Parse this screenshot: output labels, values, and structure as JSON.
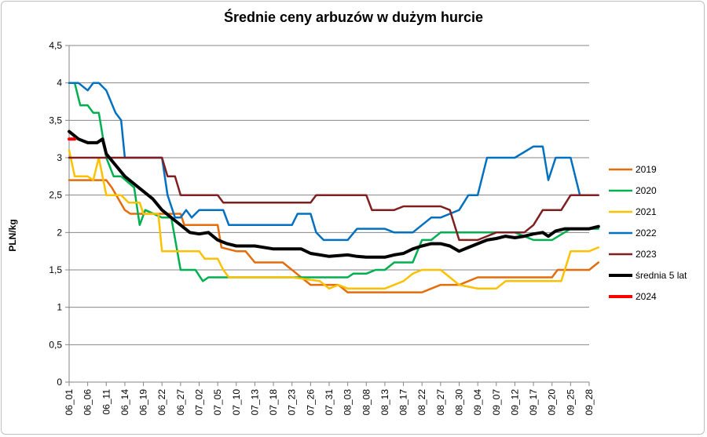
{
  "chart_data": {
    "type": "line",
    "title": "Średnie ceny arbuzów w dużym hurcie",
    "ylabel": "PLN/kg",
    "xlabel": "",
    "ylim": [
      0,
      4.5
    ],
    "yticks": [
      "0",
      "0,5",
      "1",
      "1,5",
      "2",
      "2,5",
      "3",
      "3,5",
      "4",
      "4,5"
    ],
    "grid": true,
    "legend": "right",
    "categories": [
      "06_01",
      "06_06",
      "06_11",
      "06_14",
      "06_19",
      "06_22",
      "06_27",
      "07_02",
      "07_05",
      "07_10",
      "07_13",
      "07_18",
      "07_23",
      "07_26",
      "07_31",
      "08_03",
      "08_08",
      "08_13",
      "08_17",
      "08_22",
      "08_27",
      "08_30",
      "09_04",
      "09_07",
      "09_12",
      "09_17",
      "09_20",
      "09_25",
      "09_28"
    ],
    "series": [
      {
        "name": "2019",
        "color": "#e46c0a",
        "points": [
          [
            0,
            2.7
          ],
          [
            2,
            2.7
          ],
          [
            2.3,
            2.6
          ],
          [
            3,
            2.3
          ],
          [
            3.3,
            2.25
          ],
          [
            4,
            2.25
          ],
          [
            4.3,
            2.25
          ],
          [
            6,
            2.25
          ],
          [
            6.2,
            2.1
          ],
          [
            8,
            2.1
          ],
          [
            8.2,
            1.8
          ],
          [
            9,
            1.75
          ],
          [
            9.5,
            1.75
          ],
          [
            10,
            1.6
          ],
          [
            11.5,
            1.6
          ],
          [
            12,
            1.5
          ],
          [
            12.5,
            1.4
          ],
          [
            13,
            1.3
          ],
          [
            14.5,
            1.3
          ],
          [
            15,
            1.2
          ],
          [
            17,
            1.2
          ],
          [
            19,
            1.2
          ],
          [
            19.5,
            1.25
          ],
          [
            20,
            1.3
          ],
          [
            21,
            1.3
          ],
          [
            21.5,
            1.35
          ],
          [
            22,
            1.4
          ],
          [
            23,
            1.4
          ],
          [
            25,
            1.4
          ],
          [
            26,
            1.4
          ],
          [
            26.3,
            1.5
          ],
          [
            28,
            1.5
          ],
          [
            28.5,
            1.6
          ]
        ]
      },
      {
        "name": "2020",
        "color": "#00b050",
        "points": [
          [
            0,
            4.0
          ],
          [
            0.3,
            4.0
          ],
          [
            0.6,
            3.7
          ],
          [
            1,
            3.7
          ],
          [
            1.3,
            3.6
          ],
          [
            1.6,
            3.6
          ],
          [
            2,
            3.0
          ],
          [
            2.4,
            2.75
          ],
          [
            2.8,
            2.75
          ],
          [
            3.5,
            2.6
          ],
          [
            3.8,
            2.1
          ],
          [
            4.1,
            2.3
          ],
          [
            5,
            2.2
          ],
          [
            5.5,
            2.2
          ],
          [
            6,
            1.5
          ],
          [
            6.8,
            1.5
          ],
          [
            7.2,
            1.35
          ],
          [
            7.5,
            1.4
          ],
          [
            8.3,
            1.4
          ],
          [
            8.5,
            1.4
          ],
          [
            12,
            1.4
          ],
          [
            13,
            1.4
          ],
          [
            15,
            1.4
          ],
          [
            15.3,
            1.45
          ],
          [
            16,
            1.45
          ],
          [
            16.5,
            1.5
          ],
          [
            17,
            1.5
          ],
          [
            17.5,
            1.6
          ],
          [
            18.5,
            1.6
          ],
          [
            19,
            1.9
          ],
          [
            19.5,
            1.9
          ],
          [
            20,
            2.0
          ],
          [
            21,
            2.0
          ],
          [
            24,
            2.0
          ],
          [
            25,
            1.9
          ],
          [
            26,
            1.9
          ],
          [
            27,
            2.05
          ],
          [
            28.5,
            2.05
          ]
        ]
      },
      {
        "name": "2021",
        "color": "#ffc000",
        "points": [
          [
            0,
            3.1
          ],
          [
            0.3,
            2.75
          ],
          [
            1,
            2.75
          ],
          [
            1.3,
            2.7
          ],
          [
            1.6,
            3.0
          ],
          [
            2,
            2.5
          ],
          [
            2.8,
            2.5
          ],
          [
            3.2,
            2.4
          ],
          [
            3.8,
            2.4
          ],
          [
            4,
            2.25
          ],
          [
            4.8,
            2.25
          ],
          [
            5,
            1.75
          ],
          [
            6.5,
            1.75
          ],
          [
            7,
            1.75
          ],
          [
            7.3,
            1.65
          ],
          [
            8,
            1.65
          ],
          [
            8.3,
            1.5
          ],
          [
            8.6,
            1.4
          ],
          [
            12,
            1.4
          ],
          [
            13.5,
            1.35
          ],
          [
            14,
            1.25
          ],
          [
            14.5,
            1.3
          ],
          [
            15,
            1.25
          ],
          [
            17,
            1.25
          ],
          [
            17.5,
            1.3
          ],
          [
            18,
            1.35
          ],
          [
            18.5,
            1.45
          ],
          [
            19,
            1.5
          ],
          [
            20,
            1.5
          ],
          [
            20.5,
            1.4
          ],
          [
            21,
            1.3
          ],
          [
            22,
            1.25
          ],
          [
            23,
            1.25
          ],
          [
            23.5,
            1.35
          ],
          [
            25,
            1.35
          ],
          [
            26,
            1.35
          ],
          [
            26.5,
            1.35
          ],
          [
            27,
            1.75
          ],
          [
            28,
            1.75
          ],
          [
            28.5,
            1.8
          ]
        ]
      },
      {
        "name": "2022",
        "color": "#0070c0",
        "points": [
          [
            0,
            4.0
          ],
          [
            0.5,
            4.0
          ],
          [
            1,
            3.9
          ],
          [
            1.3,
            4.0
          ],
          [
            1.6,
            4.0
          ],
          [
            2,
            3.9
          ],
          [
            2.5,
            3.6
          ],
          [
            2.8,
            3.5
          ],
          [
            3,
            3.0
          ],
          [
            4,
            3.0
          ],
          [
            5,
            3.0
          ],
          [
            5.3,
            2.5
          ],
          [
            5.7,
            2.2
          ],
          [
            6,
            2.2
          ],
          [
            6.3,
            2.3
          ],
          [
            6.6,
            2.2
          ],
          [
            7,
            2.3
          ],
          [
            8,
            2.3
          ],
          [
            8.3,
            2.3
          ],
          [
            8.6,
            2.1
          ],
          [
            11,
            2.1
          ],
          [
            12,
            2.1
          ],
          [
            12.3,
            2.25
          ],
          [
            13,
            2.25
          ],
          [
            13.3,
            2.0
          ],
          [
            13.7,
            1.9
          ],
          [
            15,
            1.9
          ],
          [
            15.5,
            2.05
          ],
          [
            17,
            2.05
          ],
          [
            17.5,
            2.0
          ],
          [
            18.5,
            2.0
          ],
          [
            19,
            2.1
          ],
          [
            19.5,
            2.2
          ],
          [
            20,
            2.2
          ],
          [
            20.5,
            2.25
          ],
          [
            21,
            2.3
          ],
          [
            21.5,
            2.5
          ],
          [
            22,
            2.5
          ],
          [
            22.5,
            3.0
          ],
          [
            24,
            3.0
          ],
          [
            25,
            3.15
          ],
          [
            25.5,
            3.15
          ],
          [
            25.8,
            2.7
          ],
          [
            26.2,
            3.0
          ],
          [
            27,
            3.0
          ],
          [
            27.5,
            2.5
          ]
        ]
      },
      {
        "name": "2023",
        "color": "#7f1f1f",
        "points": [
          [
            0,
            3.0
          ],
          [
            5,
            3.0
          ],
          [
            5.3,
            2.75
          ],
          [
            5.7,
            2.75
          ],
          [
            6,
            2.5
          ],
          [
            8,
            2.5
          ],
          [
            8.3,
            2.4
          ],
          [
            9,
            2.4
          ],
          [
            13,
            2.4
          ],
          [
            13.3,
            2.5
          ],
          [
            16,
            2.5
          ],
          [
            16.3,
            2.3
          ],
          [
            17.5,
            2.3
          ],
          [
            18,
            2.35
          ],
          [
            20,
            2.35
          ],
          [
            20.5,
            2.3
          ],
          [
            21,
            1.9
          ],
          [
            22,
            1.9
          ],
          [
            22.5,
            1.95
          ],
          [
            23,
            2.0
          ],
          [
            23.5,
            2.0
          ],
          [
            24.5,
            2.0
          ],
          [
            25,
            2.1
          ],
          [
            25.5,
            2.3
          ],
          [
            26.5,
            2.3
          ],
          [
            27,
            2.5
          ],
          [
            28.5,
            2.5
          ]
        ]
      },
      {
        "name": "średnia 5 lat",
        "color": "#000000",
        "width": 4,
        "points": [
          [
            0,
            3.35
          ],
          [
            0.5,
            3.25
          ],
          [
            1,
            3.2
          ],
          [
            1.5,
            3.2
          ],
          [
            1.8,
            3.25
          ],
          [
            2,
            3.05
          ],
          [
            2.5,
            2.9
          ],
          [
            3,
            2.75
          ],
          [
            3.5,
            2.65
          ],
          [
            4,
            2.55
          ],
          [
            4.5,
            2.45
          ],
          [
            5,
            2.3
          ],
          [
            5.5,
            2.2
          ],
          [
            6,
            2.1
          ],
          [
            6.5,
            2.0
          ],
          [
            7,
            1.98
          ],
          [
            7.5,
            2.0
          ],
          [
            8,
            1.9
          ],
          [
            8.5,
            1.85
          ],
          [
            9,
            1.82
          ],
          [
            10,
            1.82
          ],
          [
            11,
            1.78
          ],
          [
            12,
            1.78
          ],
          [
            12.5,
            1.78
          ],
          [
            13,
            1.72
          ],
          [
            13.5,
            1.7
          ],
          [
            14,
            1.68
          ],
          [
            15,
            1.7
          ],
          [
            15.5,
            1.68
          ],
          [
            16,
            1.67
          ],
          [
            17,
            1.67
          ],
          [
            17.5,
            1.7
          ],
          [
            18,
            1.72
          ],
          [
            18.5,
            1.78
          ],
          [
            19,
            1.82
          ],
          [
            19.5,
            1.85
          ],
          [
            20,
            1.85
          ],
          [
            20.5,
            1.82
          ],
          [
            21,
            1.75
          ],
          [
            21.5,
            1.8
          ],
          [
            22,
            1.85
          ],
          [
            22.5,
            1.9
          ],
          [
            23,
            1.92
          ],
          [
            23.5,
            1.95
          ],
          [
            24,
            1.93
          ],
          [
            24.5,
            1.95
          ],
          [
            25,
            1.98
          ],
          [
            25.5,
            2.0
          ],
          [
            25.8,
            1.95
          ],
          [
            26.2,
            2.02
          ],
          [
            26.7,
            2.05
          ],
          [
            27.5,
            2.05
          ],
          [
            28,
            2.05
          ],
          [
            28.5,
            2.08
          ]
        ]
      },
      {
        "name": "2024",
        "color": "#ff0000",
        "width": 4,
        "points": [
          [
            0,
            3.25
          ],
          [
            0.3,
            3.25
          ]
        ]
      }
    ]
  }
}
